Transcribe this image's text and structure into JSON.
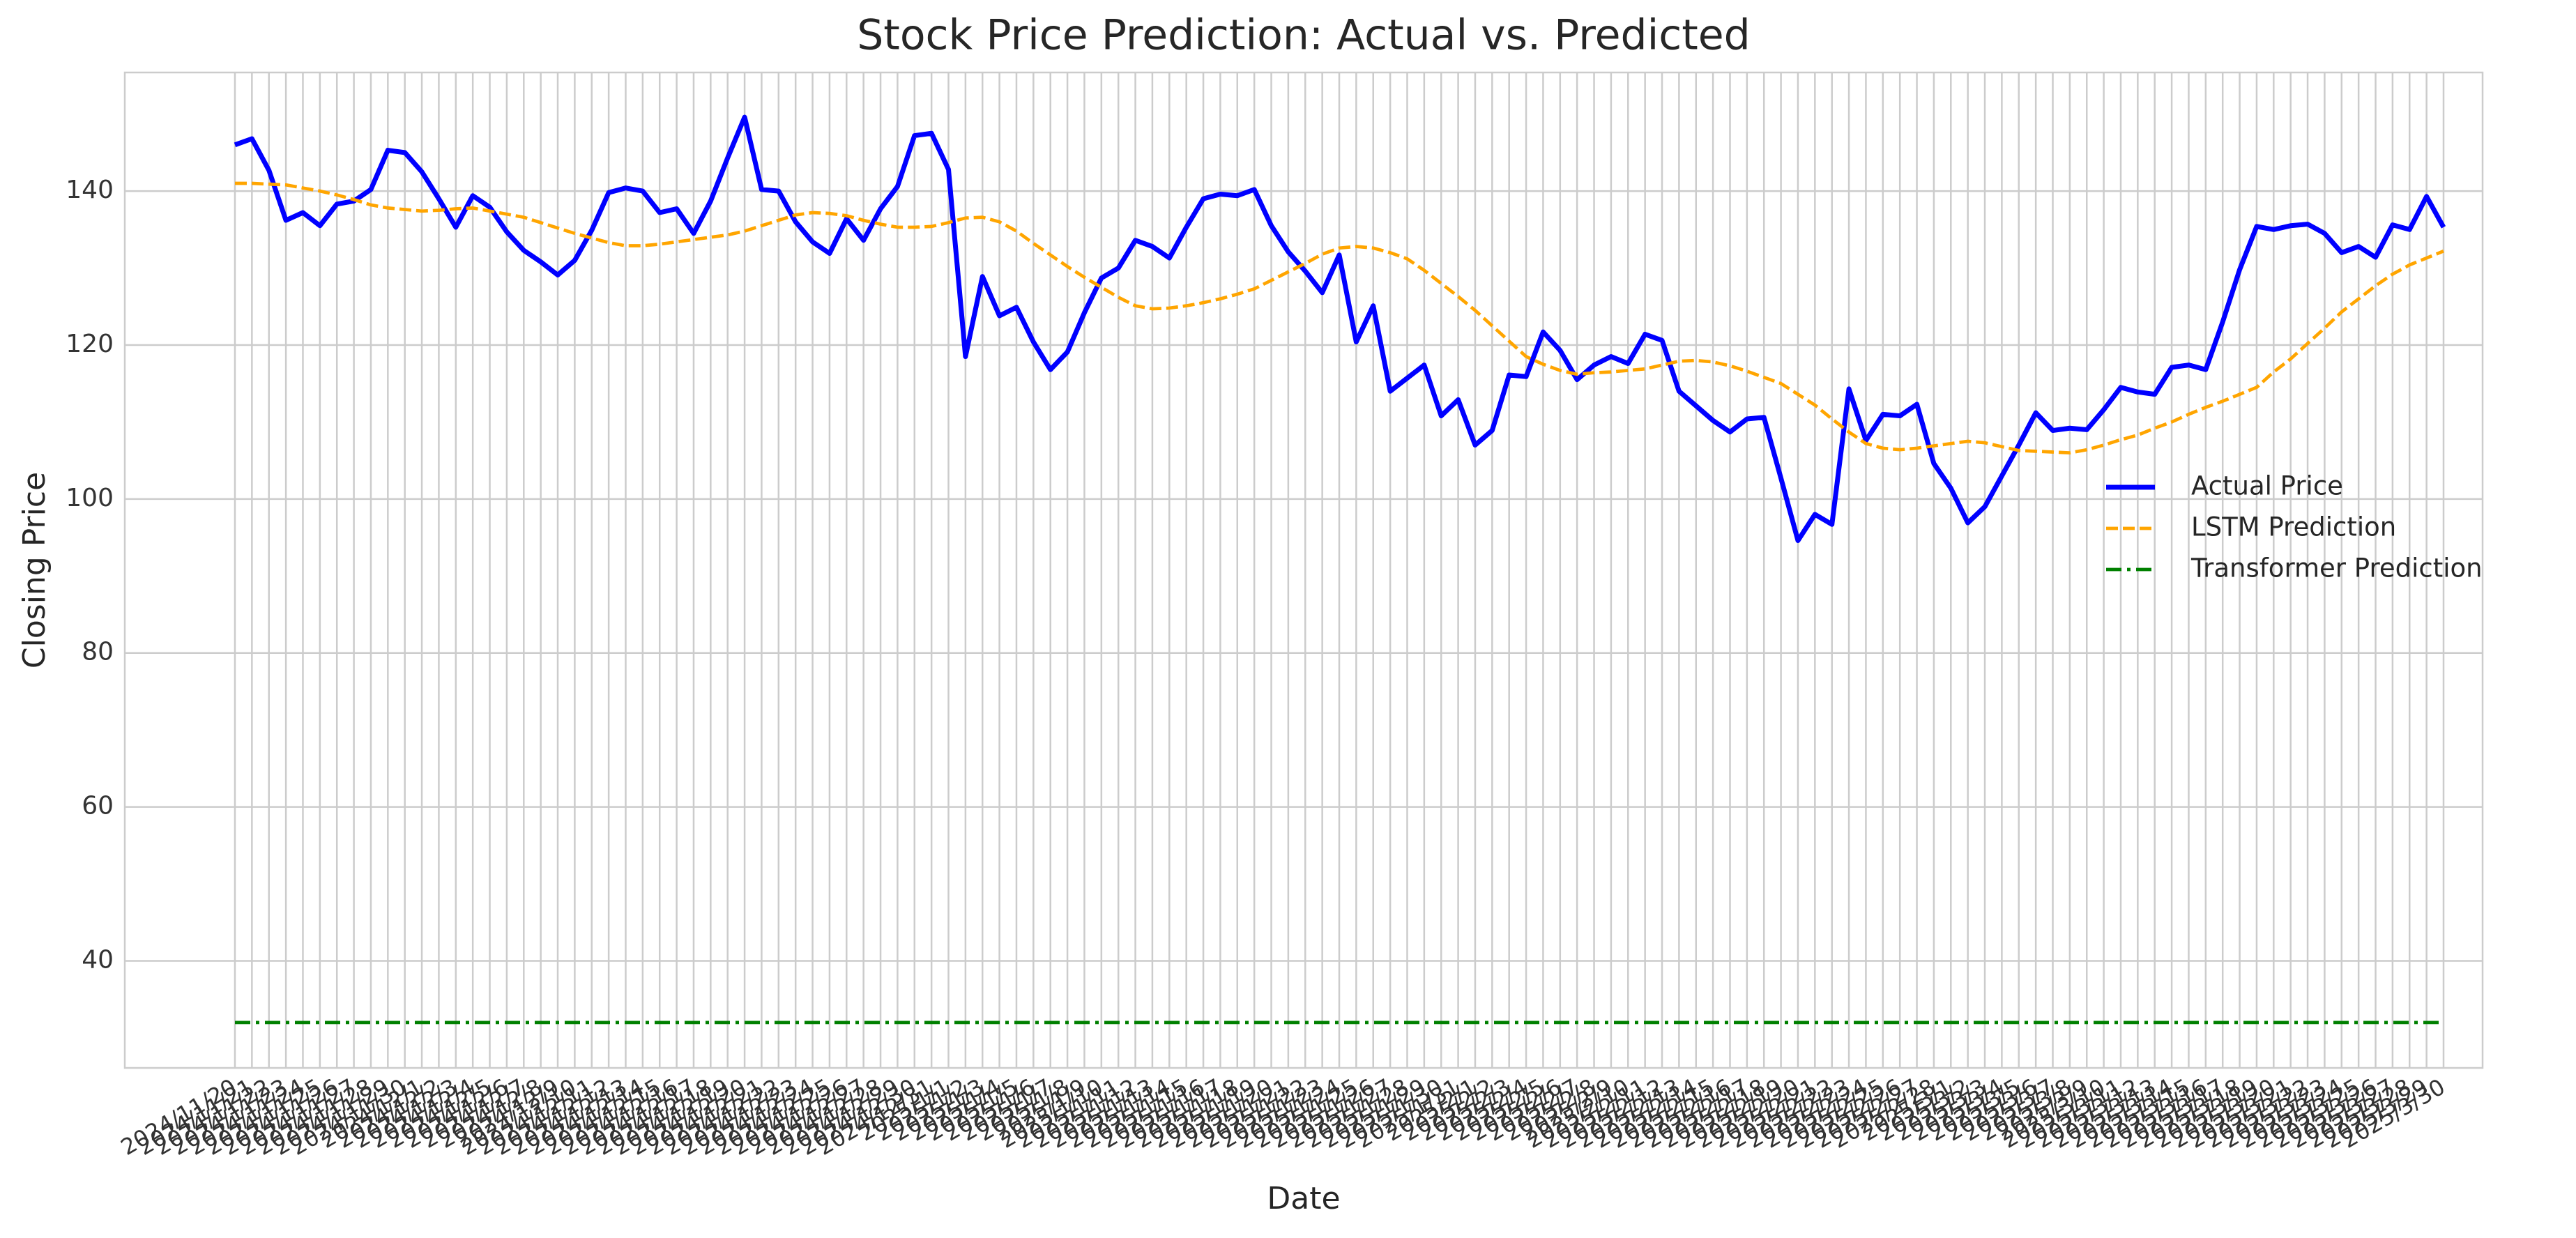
{
  "chart_data": {
    "type": "line",
    "title": "Stock Price Prediction: Actual vs. Predicted",
    "x_label": "Date",
    "y_label": "Closing Price",
    "categories": [
      "2024/11/20",
      "2024/11/21",
      "2024/11/22",
      "2024/11/23",
      "2024/11/24",
      "2024/11/25",
      "2024/11/26",
      "2024/11/27",
      "2024/11/28",
      "2024/11/29",
      "2024/11/30",
      "2024/12/1",
      "2024/12/2",
      "2024/12/3",
      "2024/12/4",
      "2024/12/5",
      "2024/12/6",
      "2024/12/7",
      "2024/12/8",
      "2024/12/9",
      "2024/12/10",
      "2024/12/11",
      "2024/12/12",
      "2024/12/13",
      "2024/12/14",
      "2024/12/15",
      "2024/12/16",
      "2024/12/17",
      "2024/12/18",
      "2024/12/19",
      "2024/12/20",
      "2024/12/21",
      "2024/12/22",
      "2024/12/23",
      "2024/12/24",
      "2024/12/25",
      "2024/12/26",
      "2024/12/27",
      "2024/12/28",
      "2024/12/29",
      "2024/12/30",
      "2024/12/31",
      "2025/1/1",
      "2025/1/2",
      "2025/1/3",
      "2025/1/4",
      "2025/1/5",
      "2025/1/6",
      "2025/1/7",
      "2025/1/8",
      "2025/1/9",
      "2025/1/10",
      "2025/1/11",
      "2025/1/12",
      "2025/1/13",
      "2025/1/14",
      "2025/1/15",
      "2025/1/16",
      "2025/1/17",
      "2025/1/18",
      "2025/1/19",
      "2025/1/20",
      "2025/1/21",
      "2025/1/22",
      "2025/1/23",
      "2025/1/24",
      "2025/1/25",
      "2025/1/26",
      "2025/1/27",
      "2025/1/28",
      "2025/1/29",
      "2025/1/30",
      "2025/1/31",
      "2025/2/1",
      "2025/2/2",
      "2025/2/3",
      "2025/2/4",
      "2025/2/5",
      "2025/2/6",
      "2025/2/7",
      "2025/2/8",
      "2025/2/9",
      "2025/2/10",
      "2025/2/11",
      "2025/2/12",
      "2025/2/13",
      "2025/2/14",
      "2025/2/15",
      "2025/2/16",
      "2025/2/17",
      "2025/2/18",
      "2025/2/19",
      "2025/2/20",
      "2025/2/21",
      "2025/2/22",
      "2025/2/23",
      "2025/2/24",
      "2025/2/25",
      "2025/2/26",
      "2025/2/27",
      "2025/2/28",
      "2025/3/1",
      "2025/3/2",
      "2025/3/3",
      "2025/3/4",
      "2025/3/5",
      "2025/3/6",
      "2025/3/7",
      "2025/3/8",
      "2025/3/9",
      "2025/3/10",
      "2025/3/11",
      "2025/3/12",
      "2025/3/13",
      "2025/3/14",
      "2025/3/15",
      "2025/3/16",
      "2025/3/17",
      "2025/3/18",
      "2025/3/19",
      "2025/3/20",
      "2025/3/21",
      "2025/3/22",
      "2025/3/23",
      "2025/3/24",
      "2025/3/25",
      "2025/3/26",
      "2025/3/27",
      "2025/3/28",
      "2025/3/29",
      "2025/3/30"
    ],
    "series": [
      {
        "name": "Actual Price",
        "color": "#0000ff",
        "linestyle": "solid",
        "values": [
          146,
          146.8,
          142.7,
          136.2,
          137.2,
          135.5,
          138.3,
          138.7,
          140.2,
          145.3,
          145,
          142.5,
          139,
          135.3,
          139.4,
          137.9,
          134.7,
          132.3,
          130.8,
          129.1,
          131,
          134.9,
          139.8,
          140.4,
          140,
          137.2,
          137.7,
          134.5,
          138.7,
          144.3,
          149.6,
          140.2,
          140,
          136,
          133.4,
          131.9,
          136.4,
          133.6,
          137.7,
          140.6,
          147.2,
          147.5,
          142.8,
          118.5,
          128.9,
          123.8,
          124.9,
          120.4,
          116.8,
          119.1,
          124.2,
          128.7,
          130,
          133.6,
          132.8,
          131.3,
          135.3,
          139,
          139.6,
          139.4,
          140.2,
          135.5,
          132.1,
          129.6,
          126.8,
          131.7,
          120.4,
          125.1,
          114,
          115.7,
          117.4,
          110.8,
          112.9,
          107,
          108.9,
          116.1,
          115.9,
          121.7,
          119.3,
          115.5,
          117.4,
          118.5,
          117.6,
          121.4,
          120.6,
          114,
          112.1,
          110.2,
          108.7,
          110.4,
          110.6,
          102.7,
          94.6,
          98,
          96.7,
          114.3,
          107.6,
          111,
          110.8,
          112.3,
          104.6,
          101.4,
          96.9,
          99,
          103,
          107,
          111.2,
          108.9,
          109.2,
          109,
          111.6,
          114.5,
          113.9,
          113.6,
          117.1,
          117.4,
          116.8,
          123,
          129.8,
          135.4,
          135,
          135.5,
          135.7,
          134.5,
          132,
          132.8,
          131.4,
          135.6,
          135,
          139.3,
          135.3
        ]
      },
      {
        "name": "LSTM Prediction",
        "color": "#ffa500",
        "linestyle": "dashed",
        "values": [
          141.0,
          141.0,
          140.9,
          140.8,
          140.4,
          140.0,
          139.5,
          138.9,
          138.2,
          137.8,
          137.6,
          137.4,
          137.5,
          137.7,
          137.8,
          137.4,
          137.0,
          136.6,
          135.9,
          135.2,
          134.5,
          133.9,
          133.3,
          132.9,
          132.9,
          133.1,
          133.4,
          133.7,
          134.0,
          134.3,
          134.8,
          135.5,
          136.2,
          136.9,
          137.2,
          137.1,
          136.8,
          136.2,
          135.7,
          135.3,
          135.3,
          135.4,
          135.9,
          136.5,
          136.6,
          136.0,
          134.8,
          133.2,
          131.7,
          130.2,
          128.8,
          127.5,
          126.2,
          125.1,
          124.7,
          124.8,
          125.1,
          125.5,
          126.0,
          126.6,
          127.3,
          128.4,
          129.5,
          130.6,
          131.8,
          132.6,
          132.8,
          132.6,
          132.0,
          131.2,
          129.7,
          128.0,
          126.3,
          124.5,
          122.5,
          120.5,
          118.5,
          117.5,
          116.7,
          116.2,
          116.4,
          116.5,
          116.7,
          116.9,
          117.4,
          117.9,
          118.0,
          117.8,
          117.3,
          116.6,
          115.8,
          115.0,
          113.6,
          112.2,
          110.4,
          108.7,
          107.2,
          106.6,
          106.4,
          106.6,
          106.9,
          107.2,
          107.5,
          107.3,
          106.8,
          106.3,
          106.2,
          106.1,
          106.0,
          106.4,
          107.0,
          107.7,
          108.3,
          109.2,
          110.0,
          111.0,
          111.9,
          112.7,
          113.6,
          114.5,
          116.5,
          118.2,
          120.2,
          122.2,
          124.3,
          126.0,
          127.7,
          129.2,
          130.4,
          131.3,
          132.2
        ]
      },
      {
        "name": "Transformer Prediction",
        "color": "#008000",
        "linestyle": "dashdot",
        "values": [
          32,
          32,
          32,
          32,
          32,
          32,
          32,
          32,
          32,
          32,
          32,
          32,
          32,
          32,
          32,
          32,
          32,
          32,
          32,
          32,
          32,
          32,
          32,
          32,
          32,
          32,
          32,
          32,
          32,
          32,
          32,
          32,
          32,
          32,
          32,
          32,
          32,
          32,
          32,
          32,
          32,
          32,
          32,
          32,
          32,
          32,
          32,
          32,
          32,
          32,
          32,
          32,
          32,
          32,
          32,
          32,
          32,
          32,
          32,
          32,
          32,
          32,
          32,
          32,
          32,
          32,
          32,
          32,
          32,
          32,
          32,
          32,
          32,
          32,
          32,
          32,
          32,
          32,
          32,
          32,
          32,
          32,
          32,
          32,
          32,
          32,
          32,
          32,
          32,
          32,
          32,
          32,
          32,
          32,
          32,
          32,
          32,
          32,
          32,
          32,
          32,
          32,
          32,
          32,
          32,
          32,
          32,
          32,
          32,
          32,
          32,
          32,
          32,
          32,
          32,
          32,
          32,
          32,
          32,
          32,
          32,
          32,
          32,
          32,
          32,
          32,
          32,
          32,
          32,
          32,
          32
        ]
      }
    ],
    "ylim": [
      26.1,
      155.4
    ],
    "yticks": [
      40,
      60,
      80,
      100,
      120,
      140
    ],
    "grid": true,
    "legend": "center right"
  }
}
